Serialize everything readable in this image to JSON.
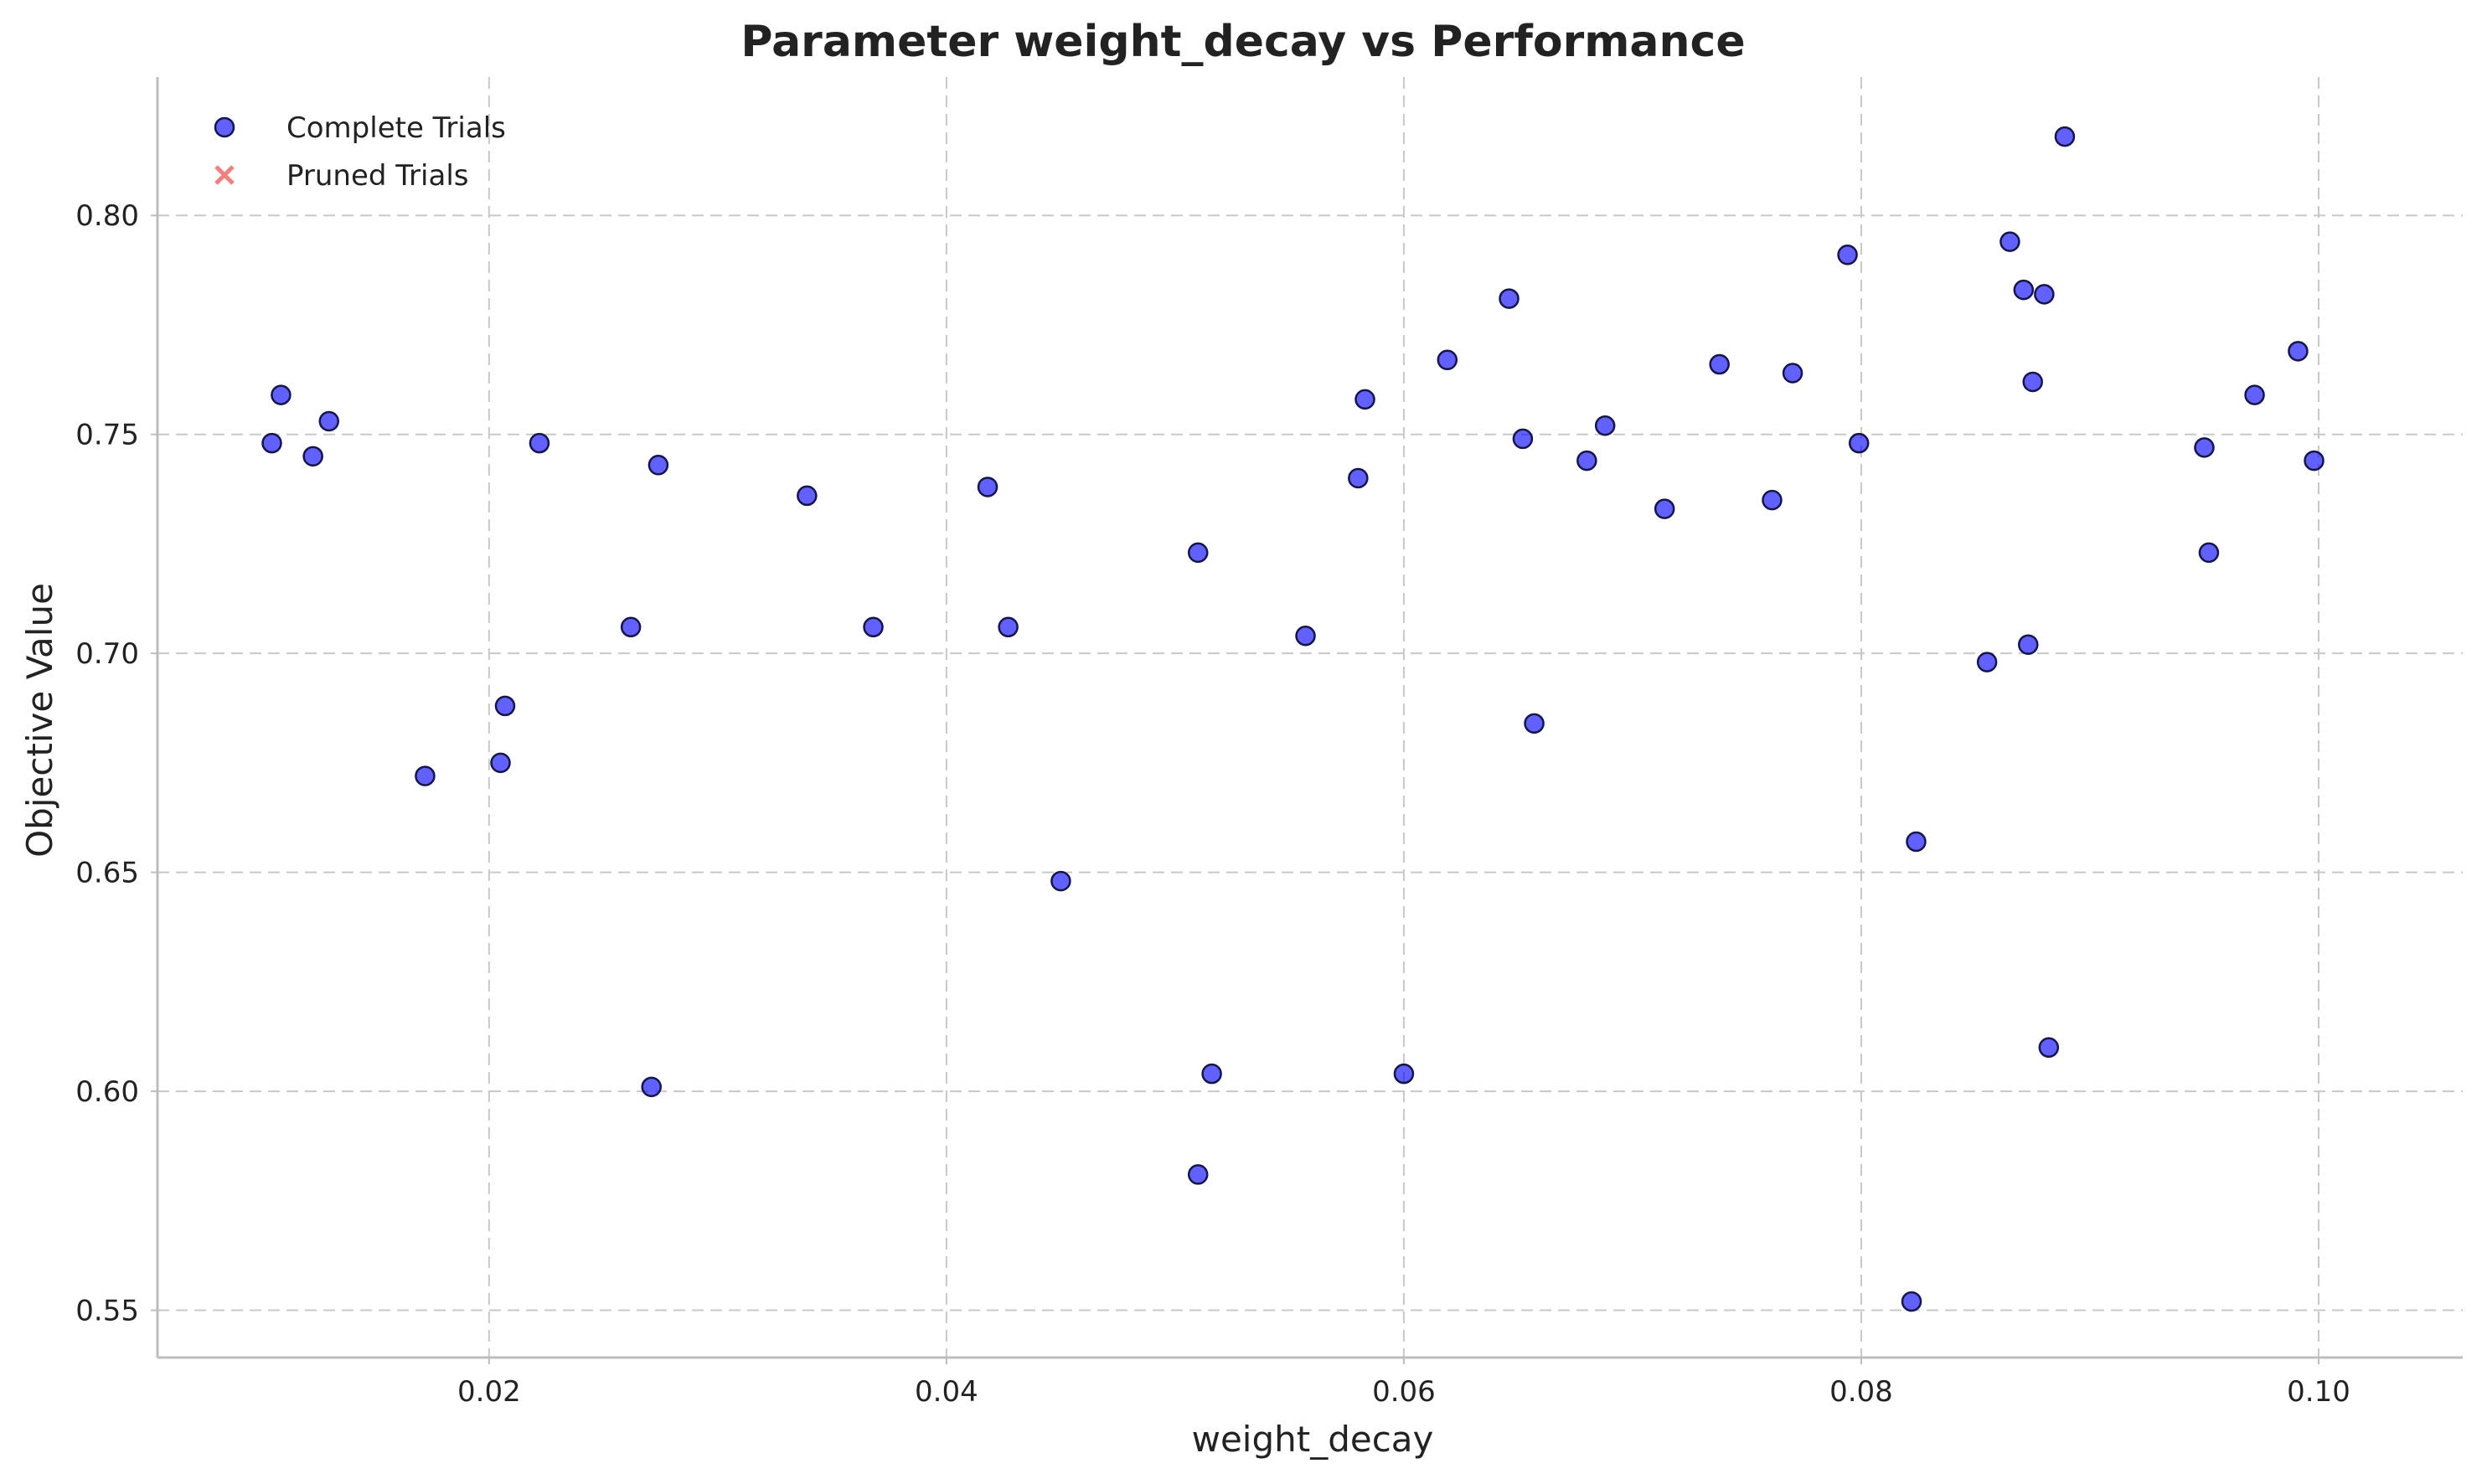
{
  "chart_data": {
    "type": "scatter",
    "title": "Parameter weight_decay vs Performance",
    "xlabel": "weight_decay",
    "ylabel": "Objective Value",
    "xlim": [
      0.0055,
      0.1063
    ],
    "ylim": [
      0.5392,
      0.8316
    ],
    "xticks": [
      0.02,
      0.04,
      0.06,
      0.08,
      0.1
    ],
    "xtick_labels": [
      "0.02",
      "0.04",
      "0.06",
      "0.08",
      "0.10"
    ],
    "yticks": [
      0.55,
      0.6,
      0.65,
      0.7,
      0.75,
      0.8
    ],
    "ytick_labels": [
      "0.55",
      "0.60",
      "0.65",
      "0.70",
      "0.75",
      "0.80"
    ],
    "grid": true,
    "legend": {
      "position": "top-left",
      "entries": [
        {
          "label": "Complete Trials",
          "marker": "circle",
          "color": "#0000ff"
        },
        {
          "label": "Pruned Trials",
          "marker": "x",
          "color": "#f08080"
        }
      ]
    },
    "series": [
      {
        "name": "Complete Trials",
        "color": "#0000ff",
        "points": [
          [
            0.0105,
            0.748
          ],
          [
            0.0109,
            0.759
          ],
          [
            0.0123,
            0.745
          ],
          [
            0.013,
            0.753
          ],
          [
            0.0172,
            0.672
          ],
          [
            0.0205,
            0.675
          ],
          [
            0.0207,
            0.688
          ],
          [
            0.0222,
            0.748
          ],
          [
            0.0262,
            0.706
          ],
          [
            0.0271,
            0.601
          ],
          [
            0.0274,
            0.743
          ],
          [
            0.0339,
            0.736
          ],
          [
            0.0368,
            0.706
          ],
          [
            0.0418,
            0.738
          ],
          [
            0.0427,
            0.706
          ],
          [
            0.045,
            0.648
          ],
          [
            0.051,
            0.723
          ],
          [
            0.051,
            0.581
          ],
          [
            0.0516,
            0.604
          ],
          [
            0.0557,
            0.704
          ],
          [
            0.058,
            0.74
          ],
          [
            0.0583,
            0.758
          ],
          [
            0.06,
            0.604
          ],
          [
            0.0619,
            0.767
          ],
          [
            0.0646,
            0.781
          ],
          [
            0.0652,
            0.749
          ],
          [
            0.0657,
            0.684
          ],
          [
            0.068,
            0.744
          ],
          [
            0.0688,
            0.752
          ],
          [
            0.0714,
            0.733
          ],
          [
            0.0738,
            0.766
          ],
          [
            0.0761,
            0.735
          ],
          [
            0.077,
            0.764
          ],
          [
            0.0794,
            0.791
          ],
          [
            0.0799,
            0.748
          ],
          [
            0.0822,
            0.552
          ],
          [
            0.0824,
            0.657
          ],
          [
            0.0855,
            0.698
          ],
          [
            0.0865,
            0.794
          ],
          [
            0.0871,
            0.783
          ],
          [
            0.0873,
            0.702
          ],
          [
            0.0875,
            0.762
          ],
          [
            0.088,
            0.782
          ],
          [
            0.0882,
            0.61
          ],
          [
            0.0889,
            0.818
          ],
          [
            0.095,
            0.747
          ],
          [
            0.0952,
            0.723
          ],
          [
            0.0972,
            0.759
          ],
          [
            0.0991,
            0.769
          ],
          [
            0.0998,
            0.744
          ]
        ]
      },
      {
        "name": "Pruned Trials",
        "color": "#f08080",
        "points": []
      }
    ]
  }
}
